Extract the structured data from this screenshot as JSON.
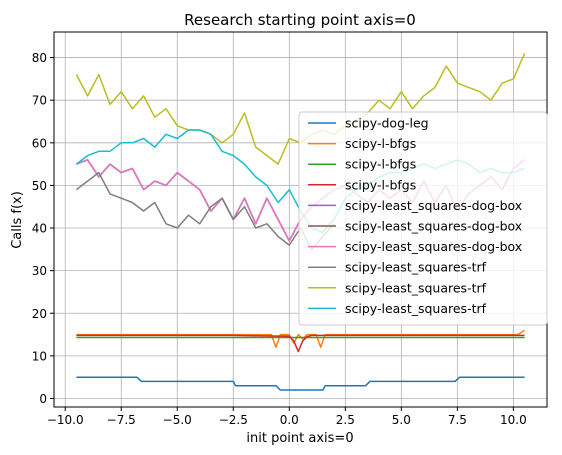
{
  "chart_data": {
    "type": "line",
    "title": "Research starting point axis=0",
    "xlabel": "init point axis=0",
    "ylabel": "Calls f(x)",
    "xlim": [
      -10.5,
      11.5
    ],
    "ylim": [
      -2,
      86
    ],
    "xticks": [
      -10.0,
      -7.5,
      -5.0,
      -2.5,
      0.0,
      2.5,
      5.0,
      7.5,
      10.0
    ],
    "xtick_labels": [
      "−10.0",
      "−7.5",
      "−5.0",
      "−2.5",
      "0.0",
      "2.5",
      "5.0",
      "7.5",
      "10.0"
    ],
    "yticks": [
      0,
      10,
      20,
      30,
      40,
      50,
      60,
      70,
      80
    ],
    "ytick_labels": [
      "0",
      "10",
      "20",
      "30",
      "40",
      "50",
      "60",
      "70",
      "80"
    ],
    "grid": true,
    "legend_position": "center-right",
    "series": [
      {
        "name": "scipy-dog-leg",
        "color": "#1f77b4",
        "x": [
          -9.5,
          -6.8,
          -6.6,
          -2.5,
          -2.4,
          -0.6,
          -0.4,
          1.5,
          1.6,
          3.4,
          3.6,
          7.4,
          7.6,
          10.5
        ],
        "values": [
          5,
          5,
          4,
          4,
          3,
          3,
          2,
          2,
          3,
          3,
          4,
          4,
          5,
          5
        ]
      },
      {
        "name": "scipy-l-bfgs",
        "color": "#ff7f0e",
        "x": [
          -9.5,
          -2.5,
          -0.8,
          -0.6,
          -0.4,
          0.0,
          0.2,
          0.4,
          0.6,
          0.8,
          1.2,
          1.4,
          1.6,
          1.8,
          10.2,
          10.5
        ],
        "values": [
          15,
          15,
          15,
          12,
          15,
          15,
          13,
          15,
          14,
          15,
          15,
          12,
          15,
          15,
          15,
          16
        ]
      },
      {
        "name": "scipy-l-bfgs",
        "color": "#2ca02c",
        "x": [
          -9.5,
          10.5
        ],
        "values": [
          14.3,
          14.3
        ]
      },
      {
        "name": "scipy-l-bfgs",
        "color": "#d62728",
        "x": [
          -9.5,
          -2.5,
          0.0,
          0.2,
          0.4,
          0.6,
          0.8,
          1.0,
          10.5
        ],
        "values": [
          14.8,
          14.8,
          14.6,
          13.5,
          11,
          13.5,
          14.5,
          14.8,
          14.8
        ]
      },
      {
        "name": "scipy-least_squares-dog-box",
        "color": "#9467bd",
        "x": [
          -9.5,
          -9.0,
          -8.5,
          -8.0,
          -7.5,
          -7.0,
          -6.5,
          -6.0,
          -5.5,
          -5.0,
          -4.5,
          -4.0,
          -3.5,
          -3.0,
          -2.5,
          -2.0,
          -1.5,
          -1.0,
          -0.5,
          0.0,
          0.5,
          1.0,
          1.5,
          2.0,
          2.5,
          3.0,
          3.5,
          4.0,
          4.5,
          5.0,
          5.5,
          6.0,
          6.5,
          7.0,
          7.5,
          8.0,
          8.5,
          9.0,
          9.5,
          10.0,
          10.5
        ],
        "values": [
          55,
          56,
          52,
          55,
          53,
          54,
          49,
          51,
          50,
          53,
          51,
          49,
          44,
          47,
          42,
          47,
          41,
          47,
          42,
          37,
          42,
          45,
          47,
          49,
          50,
          48,
          46,
          49,
          47,
          49,
          46,
          51,
          46,
          50,
          44,
          48,
          50,
          52,
          49,
          54,
          56
        ]
      },
      {
        "name": "scipy-least_squares-dog-box",
        "color": "#8c564b",
        "x": [
          -9.5,
          -9.0,
          -8.5,
          -8.0,
          -7.5,
          -7.0,
          -6.5,
          -6.0,
          -5.5,
          -5.0,
          -4.5,
          -4.0,
          -3.5,
          -3.0,
          -2.5,
          -2.0,
          -1.5,
          -1.0,
          -0.5,
          0.0,
          0.5,
          1.0,
          1.5,
          2.0,
          2.5,
          3.0,
          3.5,
          4.0,
          4.5,
          5.0,
          5.5,
          6.0,
          6.5,
          7.0,
          7.5,
          8.0,
          8.5,
          9.0,
          9.5,
          10.0,
          10.5
        ],
        "values": [
          55,
          56,
          52,
          55,
          53,
          54,
          49,
          51,
          50,
          53,
          51,
          49,
          44,
          47,
          42,
          47,
          41,
          47,
          42,
          37,
          42,
          45,
          47,
          49,
          50,
          48,
          46,
          49,
          47,
          49,
          46,
          51,
          46,
          50,
          44,
          48,
          50,
          52,
          49,
          54,
          56
        ]
      },
      {
        "name": "scipy-least_squares-dog-box",
        "color": "#e377c2",
        "x": [
          -9.5,
          -9.0,
          -8.5,
          -8.0,
          -7.5,
          -7.0,
          -6.5,
          -6.0,
          -5.5,
          -5.0,
          -4.5,
          -4.0,
          -3.5,
          -3.0,
          -2.5,
          -2.0,
          -1.5,
          -1.0,
          -0.5,
          0.0,
          0.5,
          1.0,
          1.5,
          2.0,
          2.5,
          3.0,
          3.5,
          4.0,
          4.5,
          5.0,
          5.5,
          6.0,
          6.5,
          7.0,
          7.5,
          8.0,
          8.5,
          9.0,
          9.5,
          10.0,
          10.5
        ],
        "values": [
          55,
          56,
          52,
          55,
          53,
          54,
          49,
          51,
          50,
          53,
          51,
          49,
          44,
          47,
          42,
          47,
          41,
          47,
          42,
          37,
          42,
          45,
          47,
          49,
          50,
          48,
          46,
          49,
          47,
          49,
          46,
          51,
          46,
          50,
          44,
          48,
          50,
          52,
          49,
          54,
          56
        ]
      },
      {
        "name": "scipy-least_squares-trf",
        "color": "#7f7f7f",
        "x": [
          -9.5,
          -9.0,
          -8.5,
          -8.0,
          -7.5,
          -7.0,
          -6.5,
          -6.0,
          -5.5,
          -5.0,
          -4.5,
          -4.0,
          -3.5,
          -3.0,
          -2.5,
          -2.0,
          -1.5,
          -1.0,
          -0.5,
          0.0,
          0.5,
          1.0,
          1.5,
          2.0
        ],
        "values": [
          49,
          51,
          53,
          48,
          47,
          46,
          44,
          46,
          41,
          40,
          43,
          41,
          45,
          47,
          42,
          45,
          40,
          41,
          38,
          36,
          40,
          35,
          38,
          41
        ]
      },
      {
        "name": "scipy-least_squares-trf",
        "color": "#bcbd22",
        "x": [
          -9.5,
          -9.0,
          -8.5,
          -8.0,
          -7.5,
          -7.0,
          -6.5,
          -6.0,
          -5.5,
          -5.0,
          -4.5,
          -4.0,
          -3.5,
          -3.0,
          -2.5,
          -2.0,
          -1.5,
          -1.0,
          -0.5,
          0.0,
          0.5,
          1.0,
          1.5,
          2.0,
          2.5,
          3.0,
          3.5,
          4.0,
          4.5,
          5.0,
          5.5,
          6.0,
          6.5,
          7.0,
          7.5,
          8.0,
          8.5,
          9.0,
          9.5,
          10.0,
          10.5
        ],
        "values": [
          76,
          71,
          76,
          69,
          72,
          68,
          71,
          66,
          68,
          64,
          63,
          63,
          62,
          60,
          62,
          67,
          59,
          57,
          55,
          61,
          60,
          62,
          63,
          62,
          64,
          65,
          67,
          70,
          68,
          72,
          68,
          71,
          73,
          78,
          74,
          73,
          72,
          70,
          74,
          75,
          81
        ]
      },
      {
        "name": "scipy-least_squares-trf",
        "color": "#17becf",
        "x": [
          -9.5,
          -9.0,
          -8.5,
          -8.0,
          -7.5,
          -7.0,
          -6.5,
          -6.0,
          -5.5,
          -5.0,
          -4.5,
          -4.0,
          -3.5,
          -3.0,
          -2.5,
          -2.0,
          -1.5,
          -1.0,
          -0.5,
          0.0,
          0.5,
          1.0,
          1.5,
          2.0,
          2.5,
          3.0,
          3.5,
          4.0,
          4.5,
          5.0,
          5.5,
          6.0,
          6.5,
          7.0,
          7.5,
          8.0,
          8.5,
          9.0,
          9.5,
          10.0,
          10.5
        ],
        "values": [
          55,
          57,
          58,
          58,
          60,
          60,
          61,
          59,
          62,
          61,
          63,
          63,
          62,
          58,
          57,
          55,
          52,
          50,
          46,
          49,
          44,
          40,
          39,
          42,
          47,
          49,
          50,
          52,
          53,
          53,
          54,
          55,
          54,
          55,
          56,
          55,
          53,
          54,
          53,
          53,
          54
        ]
      }
    ]
  }
}
